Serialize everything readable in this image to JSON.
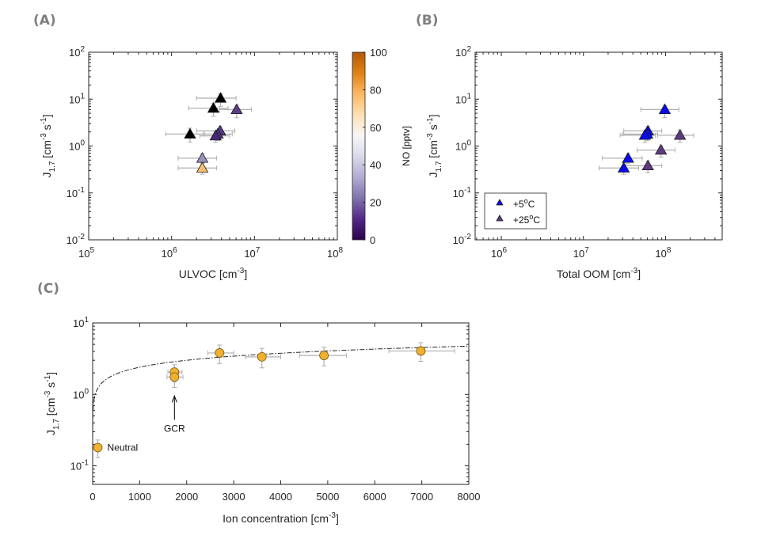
{
  "panel_labels": {
    "a": "(A)",
    "b": "(B)",
    "c": "(C)"
  },
  "chart_data": [
    {
      "id": "A",
      "type": "scatter",
      "title": "",
      "xlabel": "ULVOC [cm^-3]",
      "ylabel": "J_1.7 [cm^-3 s^-1]",
      "xscale": "log",
      "yscale": "log",
      "xlim": [
        100000.0,
        100000000.0
      ],
      "ylim": [
        0.01,
        100
      ],
      "xticks": [
        5,
        6,
        7,
        8
      ],
      "yticks": [
        -2,
        -1,
        0,
        1,
        2
      ],
      "colorbar": {
        "label": "NO [pptv]",
        "range": [
          0,
          100
        ],
        "ticks": [
          0,
          20,
          40,
          60,
          80,
          100
        ],
        "colormap": [
          "#2d004b",
          "#542788",
          "#8073ac",
          "#b2abd2",
          "#d8daeb",
          "#f7f7f7",
          "#fee0b6",
          "#fdb863",
          "#e08214",
          "#b35806"
        ]
      },
      "points": [
        {
          "x": 3900000.0,
          "y": 10.5,
          "xerr": [
            2000000.0,
            6000000.0
          ],
          "yerr": [
            7.0,
            13.0
          ],
          "no": 0,
          "color": "#000000"
        },
        {
          "x": 3200000.0,
          "y": 6.4,
          "xerr": [
            1600000.0,
            4800000.0
          ],
          "yerr": [
            4.3,
            8.2
          ],
          "no": 0,
          "color": "#000000"
        },
        {
          "x": 6100000.0,
          "y": 6.0,
          "xerr": [
            3800000.0,
            9200000.0
          ],
          "yerr": [
            4.0,
            7.4
          ],
          "no": 12,
          "color": "#5a3c8c"
        },
        {
          "x": 1670000.0,
          "y": 1.8,
          "xerr": [
            850000.0,
            2500000.0
          ],
          "yerr": [
            1.2,
            2.4
          ],
          "no": 0,
          "color": "#000000"
        },
        {
          "x": 3850000.0,
          "y": 2.1,
          "xerr": [
            2000000.0,
            5800000.0
          ],
          "yerr": [
            1.5,
            2.6
          ],
          "no": 10,
          "color": "#553887"
        },
        {
          "x": 3600000.0,
          "y": 1.8,
          "xerr": [
            2400000.0,
            5400000.0
          ],
          "yerr": [
            1.3,
            2.2
          ],
          "no": 8,
          "color": "#4f307f"
        },
        {
          "x": 3400000.0,
          "y": 1.65,
          "xerr": [
            2200000.0,
            5000000.0
          ],
          "yerr": [
            1.2,
            2.0
          ],
          "no": 6,
          "color": "#462879"
        },
        {
          "x": 2350000.0,
          "y": 0.55,
          "xerr": [
            1200000.0,
            3500000.0
          ],
          "yerr": [
            0.42,
            0.68
          ],
          "no": 35,
          "color": "#9c92c2"
        },
        {
          "x": 2350000.0,
          "y": 0.34,
          "xerr": [
            1200000.0,
            3500000.0
          ],
          "yerr": [
            0.25,
            0.44
          ],
          "no": 72,
          "color": "#fdbe70"
        }
      ]
    },
    {
      "id": "B",
      "type": "scatter",
      "title": "",
      "xlabel": "Total OOM [cm^-3]",
      "ylabel": "J_1.7 [cm^-3 s^-1]",
      "xscale": "log",
      "yscale": "log",
      "xlim": [
        480000.0,
        490000000.0
      ],
      "ylim": [
        0.01,
        100
      ],
      "xticks": [
        6,
        7,
        8
      ],
      "yticks": [
        -2,
        -1,
        0,
        1,
        2
      ],
      "legend": {
        "placement": "bottom-left",
        "entries": [
          {
            "label": "+5°C",
            "color": "#0a0af0"
          },
          {
            "label": "+25°C",
            "color": "#5e3a80"
          }
        ]
      },
      "series": [
        {
          "name": "+5°C",
          "color": "#0a0af0",
          "points": [
            {
              "x": 98000000.0,
              "y": 6.0,
              "xerr": [
                50000000.0,
                145000000.0
              ],
              "yerr": [
                4.0,
                7.4
              ]
            },
            {
              "x": 61000000.0,
              "y": 2.1,
              "xerr": [
                31000000.0,
                90000000.0
              ],
              "yerr": [
                1.5,
                2.6
              ]
            },
            {
              "x": 60000000.0,
              "y": 1.8,
              "xerr": [
                30000000.0,
                80000000.0
              ],
              "yerr": [
                1.3,
                2.2
              ]
            },
            {
              "x": 56000000.0,
              "y": 1.7,
              "xerr": [
                28000000.0,
                75000000.0
              ],
              "yerr": [
                1.2,
                2.1
              ]
            },
            {
              "x": 35000000.0,
              "y": 0.55,
              "xerr": [
                17000000.0,
                52000000.0
              ],
              "yerr": [
                0.42,
                0.68
              ]
            },
            {
              "x": 31000000.0,
              "y": 0.34,
              "xerr": [
                15500000.0,
                47000000.0
              ],
              "yerr": [
                0.25,
                0.44
              ]
            }
          ]
        },
        {
          "name": "+25°C",
          "color": "#5e3a80",
          "points": [
            {
              "x": 150000000.0,
              "y": 1.7,
              "xerr": [
                80000000.0,
                220000000.0
              ],
              "yerr": [
                1.2,
                2.2
              ]
            },
            {
              "x": 88000000.0,
              "y": 0.82,
              "xerr": [
                45000000.0,
                130000000.0
              ],
              "yerr": [
                0.58,
                1.0
              ]
            },
            {
              "x": 61000000.0,
              "y": 0.38,
              "xerr": [
                33000000.0,
                90000000.0
              ],
              "yerr": [
                0.27,
                0.48
              ]
            }
          ]
        }
      ]
    },
    {
      "id": "C",
      "type": "scatter",
      "title": "",
      "xlabel": "Ion concentration [cm^-3]",
      "ylabel": "J_1.7 [cm^-3 s^-1]",
      "xscale": "linear",
      "yscale": "log",
      "xlim": [
        0,
        8000
      ],
      "ylim": [
        0.055,
        10
      ],
      "xticks": [
        0,
        1000,
        2000,
        3000,
        4000,
        5000,
        6000,
        7000,
        8000
      ],
      "yticks": [
        -1,
        0,
        1
      ],
      "marker_color": "#f0b030",
      "points": [
        {
          "x": 110,
          "y": 0.18,
          "xerr": [
            110,
            110
          ],
          "yerr": [
            0.13,
            0.23
          ]
        },
        {
          "x": 1740,
          "y": 2.05,
          "xerr": [
            1600,
            1900
          ],
          "yerr": [
            1.5,
            2.6
          ]
        },
        {
          "x": 1740,
          "y": 1.75,
          "xerr": [
            1580,
            1920
          ],
          "yerr": [
            1.25,
            2.2
          ]
        },
        {
          "x": 2700,
          "y": 3.8,
          "xerr": [
            2450,
            3000
          ],
          "yerr": [
            2.7,
            4.9
          ]
        },
        {
          "x": 3600,
          "y": 3.35,
          "xerr": [
            3250,
            4000
          ],
          "yerr": [
            2.35,
            4.4
          ]
        },
        {
          "x": 4920,
          "y": 3.5,
          "xerr": [
            4400,
            5400
          ],
          "yerr": [
            2.5,
            4.6
          ]
        },
        {
          "x": 6980,
          "y": 4.05,
          "xerr": [
            6300,
            7700
          ],
          "yerr": [
            2.9,
            5.3
          ]
        }
      ],
      "fit": {
        "style": "dash-dot",
        "description": "power-law fit",
        "a": 0.92,
        "b": 0.0,
        "form": "J = J0 + k*ion^p",
        "j0": 0.18,
        "k": 0.205,
        "p": 0.345
      },
      "annotations": [
        {
          "text": "Neutral",
          "x": 110,
          "y": 0.18
        },
        {
          "text": "GCR",
          "x": 1740,
          "y": 0.95,
          "arrow": true
        }
      ]
    }
  ]
}
